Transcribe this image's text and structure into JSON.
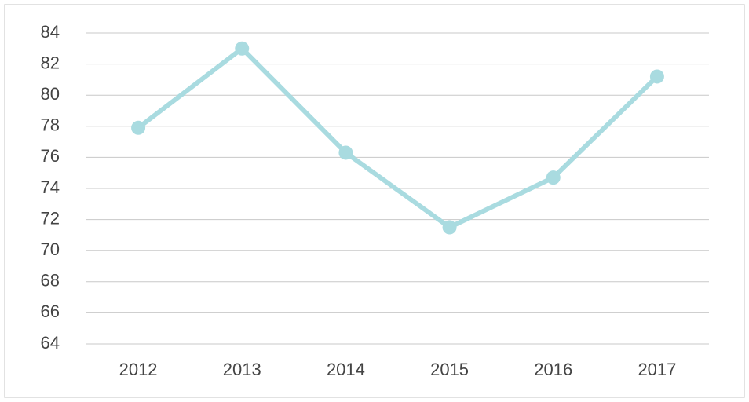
{
  "chart_data": {
    "type": "line",
    "categories": [
      "2012",
      "2013",
      "2014",
      "2015",
      "2016",
      "2017"
    ],
    "series": [
      {
        "color": "#a9dbe0",
        "values": [
          77.9,
          83.0,
          76.3,
          71.5,
          74.7,
          81.2
        ]
      }
    ],
    "ylim": [
      64,
      84
    ],
    "yticks": [
      64,
      66,
      68,
      70,
      72,
      74,
      76,
      78,
      80,
      82,
      84
    ],
    "grid": true
  }
}
